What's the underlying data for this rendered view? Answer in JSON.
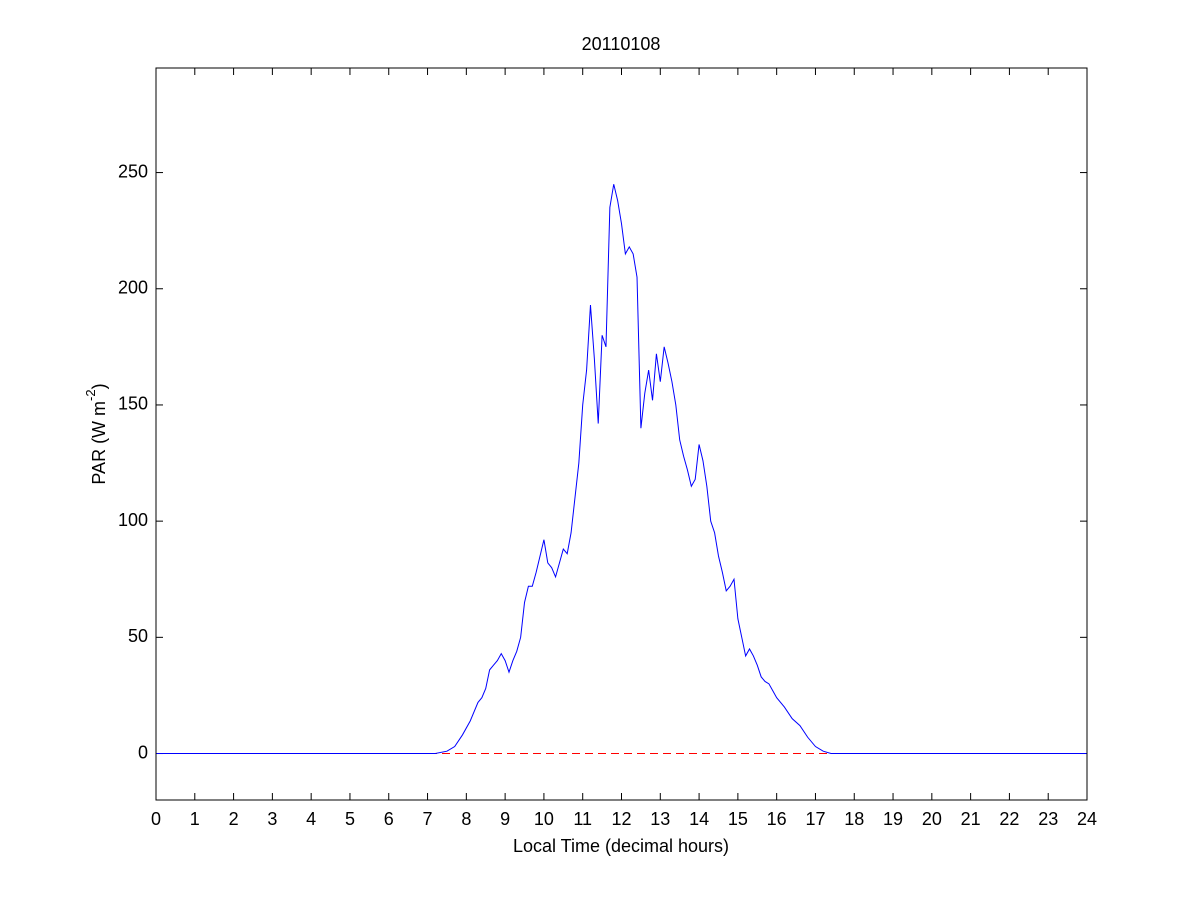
{
  "chart_data": {
    "type": "line",
    "title": "20110108",
    "x_label": "Local Time (decimal hours)",
    "y_label": [
      "PAR (W m",
      "-2",
      ")"
    ],
    "x": [
      0,
      7.2,
      7.5,
      7.7,
      7.9,
      8.1,
      8.3,
      8.4,
      8.5,
      8.6,
      8.7,
      8.8,
      8.9,
      9.0,
      9.1,
      9.2,
      9.3,
      9.4,
      9.5,
      9.6,
      9.7,
      9.8,
      9.9,
      10.0,
      10.1,
      10.2,
      10.3,
      10.4,
      10.5,
      10.6,
      10.7,
      10.8,
      10.9,
      11.0,
      11.1,
      11.2,
      11.3,
      11.4,
      11.5,
      11.6,
      11.7,
      11.8,
      11.9,
      12.0,
      12.1,
      12.2,
      12.3,
      12.4,
      12.5,
      12.6,
      12.7,
      12.8,
      12.9,
      13.0,
      13.1,
      13.2,
      13.3,
      13.4,
      13.5,
      13.6,
      13.7,
      13.8,
      13.9,
      14.0,
      14.1,
      14.2,
      14.3,
      14.4,
      14.5,
      14.6,
      14.7,
      14.8,
      14.9,
      15.0,
      15.1,
      15.2,
      15.3,
      15.4,
      15.5,
      15.6,
      15.7,
      15.8,
      15.9,
      16.0,
      16.2,
      16.4,
      16.6,
      16.8,
      17.0,
      17.2,
      17.4,
      24
    ],
    "series": [
      {
        "color": "#0000ff",
        "values": [
          0,
          0,
          1,
          3,
          8,
          14,
          22,
          24,
          28,
          36,
          38,
          40,
          43,
          40,
          35,
          40,
          44,
          50,
          65,
          72,
          72,
          78,
          85,
          92,
          82,
          80,
          76,
          82,
          88,
          86,
          95,
          110,
          125,
          150,
          165,
          193,
          170,
          142,
          180,
          175,
          235,
          245,
          238,
          228,
          215,
          218,
          215,
          205,
          140,
          155,
          165,
          152,
          172,
          160,
          175,
          168,
          160,
          150,
          135,
          128,
          122,
          115,
          118,
          133,
          126,
          115,
          100,
          95,
          85,
          78,
          70,
          72,
          75,
          58,
          50,
          42,
          45,
          42,
          38,
          33,
          31,
          30,
          27,
          24,
          20,
          15,
          12,
          7,
          3,
          1,
          0,
          0
        ]
      }
    ],
    "reference_line": {
      "y": 0,
      "color": "#ff0000",
      "dashed": true
    },
    "xlim": [
      0,
      24
    ],
    "xticks": [
      0,
      1,
      2,
      3,
      4,
      5,
      6,
      7,
      8,
      9,
      10,
      11,
      12,
      13,
      14,
      15,
      16,
      17,
      18,
      19,
      20,
      21,
      22,
      23,
      24
    ],
    "ylim": [
      -20,
      295
    ],
    "yticks": [
      0,
      50,
      100,
      150,
      200,
      250
    ],
    "grid": false
  }
}
